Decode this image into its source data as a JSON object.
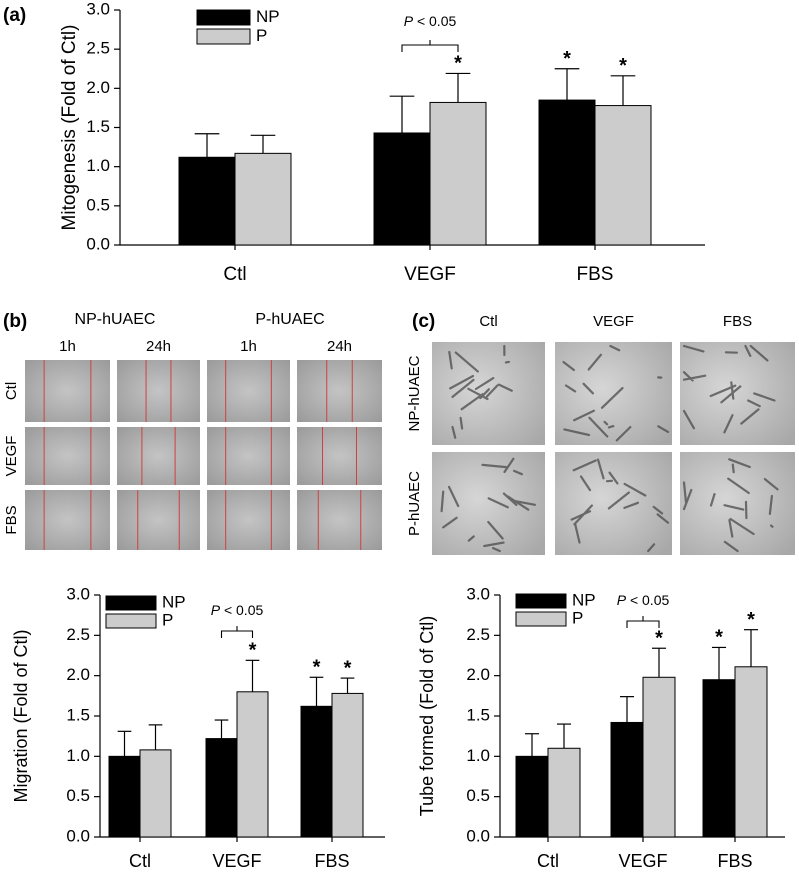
{
  "chart_data": [
    {
      "type": "bar",
      "panel_label": "(a)",
      "y_label": "Mitogenesis (Fold of Ctl)",
      "categories": [
        "Ctl",
        "VEGF",
        "FBS"
      ],
      "series": [
        {
          "name": "NP",
          "color": "#000000",
          "values": [
            1.12,
            1.43,
            1.85
          ],
          "errors": [
            0.3,
            0.47,
            0.4
          ],
          "markers": [
            null,
            null,
            "*"
          ]
        },
        {
          "name": "P",
          "color": "#cccccc",
          "values": [
            1.17,
            1.82,
            1.78
          ],
          "errors": [
            0.23,
            0.37,
            0.38
          ],
          "markers": [
            null,
            "*",
            "*"
          ]
        }
      ],
      "annotation": "P < 0.05",
      "ylim": [
        0,
        3
      ],
      "yticks": [
        {
          "value": 0,
          "label": "0.0"
        },
        {
          "value": 0.5,
          "label": "0.5"
        },
        {
          "value": 1,
          "label": "1.0"
        },
        {
          "value": 1.5,
          "label": "1.5"
        },
        {
          "value": 2,
          "label": "2.0"
        },
        {
          "value": 2.5,
          "label": "2.5"
        },
        {
          "value": 3,
          "label": "3.0"
        }
      ]
    },
    {
      "type": "bar",
      "y_label": "Migration (Fold of Ctl)",
      "categories": [
        "Ctl",
        "VEGF",
        "FBS"
      ],
      "series": [
        {
          "name": "NP",
          "color": "#000000",
          "values": [
            1.0,
            1.22,
            1.62
          ],
          "errors": [
            0.31,
            0.23,
            0.36
          ],
          "markers": [
            null,
            null,
            "*"
          ]
        },
        {
          "name": "P",
          "color": "#cccccc",
          "values": [
            1.08,
            1.8,
            1.78
          ],
          "errors": [
            0.31,
            0.39,
            0.19
          ],
          "markers": [
            null,
            "*",
            "*"
          ]
        }
      ],
      "annotation": "P < 0.05",
      "ylim": [
        0,
        3
      ],
      "yticks": [
        {
          "value": 0,
          "label": "0.0"
        },
        {
          "value": 0.5,
          "label": "0.5"
        },
        {
          "value": 1,
          "label": "1.0"
        },
        {
          "value": 1.5,
          "label": "1.5"
        },
        {
          "value": 2,
          "label": "2.0"
        },
        {
          "value": 2.5,
          "label": "2.5"
        },
        {
          "value": 3,
          "label": "3.0"
        }
      ]
    },
    {
      "type": "bar",
      "y_label": "Tube formed (Fold of Ctl)",
      "categories": [
        "Ctl",
        "VEGF",
        "FBS"
      ],
      "series": [
        {
          "name": "NP",
          "color": "#000000",
          "values": [
            1.0,
            1.42,
            1.95
          ],
          "errors": [
            0.28,
            0.32,
            0.4
          ],
          "markers": [
            null,
            null,
            "*"
          ]
        },
        {
          "name": "P",
          "color": "#cccccc",
          "values": [
            1.1,
            1.98,
            2.11
          ],
          "errors": [
            0.3,
            0.36,
            0.46
          ],
          "markers": [
            null,
            "*",
            "*"
          ]
        }
      ],
      "annotation": "P < 0.05",
      "ylim": [
        0,
        3
      ],
      "yticks": [
        {
          "value": 0,
          "label": "0.0"
        },
        {
          "value": 0.5,
          "label": "0.5"
        },
        {
          "value": 1,
          "label": "1.0"
        },
        {
          "value": 1.5,
          "label": "1.5"
        },
        {
          "value": 2,
          "label": "2.0"
        },
        {
          "value": 2.5,
          "label": "2.5"
        },
        {
          "value": 3,
          "label": "3.0"
        }
      ]
    }
  ],
  "panel_b": {
    "label": "(b)",
    "groups": [
      "NP-hUAEC",
      "P-hUAEC"
    ],
    "times": [
      "1h",
      "24h",
      "1h",
      "24h"
    ],
    "rows": [
      "Ctl",
      "VEGF",
      "FBS"
    ]
  },
  "panel_c": {
    "label": "(c)",
    "columns": [
      "Ctl",
      "VEGF",
      "FBS"
    ],
    "rows": [
      "NP-hUAEC",
      "P-hUAEC"
    ]
  }
}
